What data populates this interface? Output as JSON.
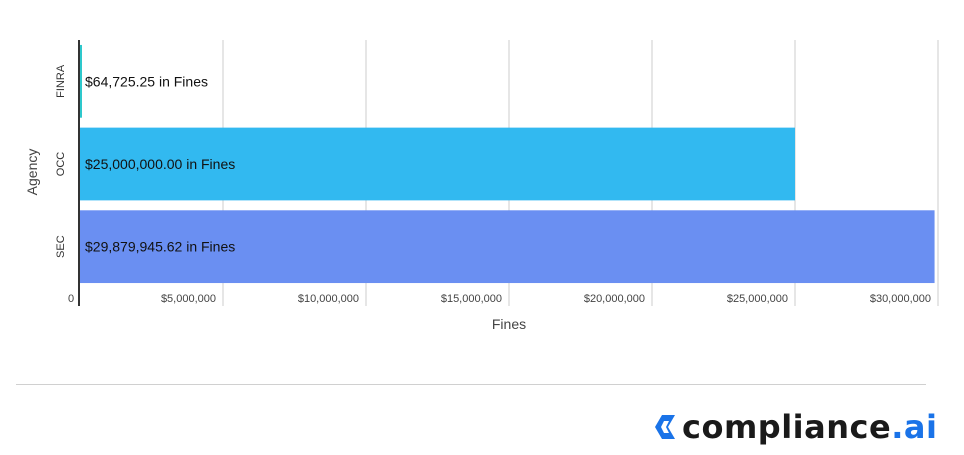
{
  "chart_data": {
    "type": "bar",
    "orientation": "horizontal",
    "categories": [
      "FINRA",
      "OCC",
      "SEC"
    ],
    "values": [
      64725.25,
      25000000.0,
      29879945.62
    ],
    "data_labels": [
      "$64,725.25 in Fines",
      "$25,000,000.00 in Fines",
      "$29,879,945.62 in Fines"
    ],
    "bar_colors": [
      "#2ec8cc",
      "#32b9f0",
      "#6a8ff2"
    ],
    "xlabel": "Fines",
    "ylabel": "Agency",
    "xlim": [
      0,
      30000000
    ],
    "x_ticks": [
      0,
      5000000,
      10000000,
      15000000,
      20000000,
      25000000,
      30000000
    ],
    "x_tick_labels": [
      "0",
      "$5,000,000",
      "$10,000,000",
      "$15,000,000",
      "$20,000,000",
      "$25,000,000",
      "$30,000,000"
    ],
    "grid": true,
    "legend": false
  },
  "brand": {
    "logo_text": "compliance",
    "logo_suffix": ".ai",
    "accent_color": "#1a73e8",
    "logo_icon": "chevron-icon"
  }
}
